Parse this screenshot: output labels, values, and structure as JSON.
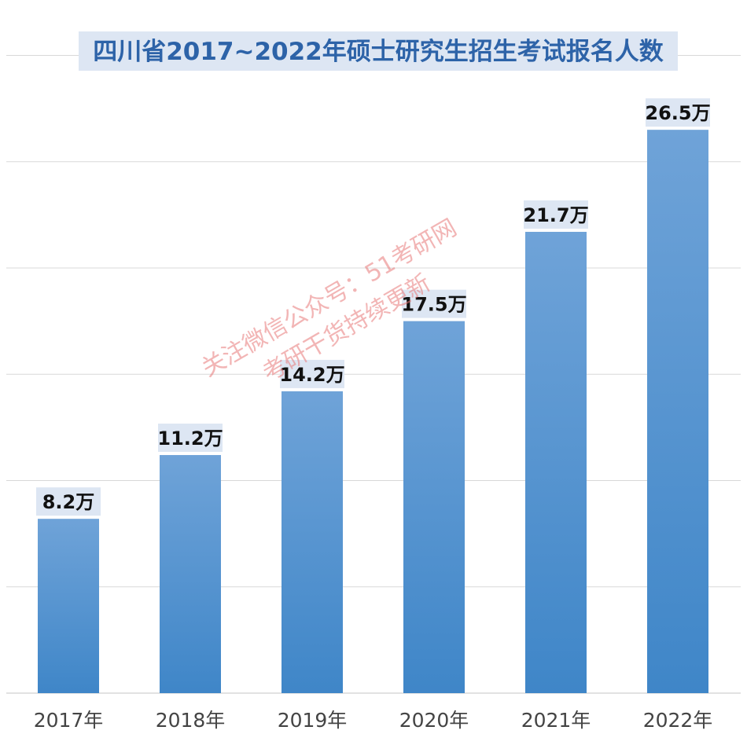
{
  "chart_data": {
    "type": "bar",
    "title": "四川省2017~2022年硕士研究生招生考试报名人数",
    "categories": [
      "2017年",
      "2018年",
      "2019年",
      "2020年",
      "2021年",
      "2022年"
    ],
    "values": [
      8.2,
      11.2,
      14.2,
      17.5,
      21.7,
      26.5
    ],
    "data_labels": [
      "8.2万",
      "11.2万",
      "14.2万",
      "17.5万",
      "21.7万",
      "26.5万"
    ],
    "unit": "万",
    "xlabel": "",
    "ylabel": "",
    "ylim": [
      0,
      30
    ],
    "grid": true,
    "legend": "none",
    "colors": {
      "bar_top": "#6fa3d8",
      "bar_bottom": "#3f86c8",
      "label_bg": "#dde6f3",
      "title_bg": "#dde6f3",
      "title_text": "#2d63a8",
      "gridline": "#d8d8d8"
    }
  },
  "watermark": {
    "line1": "关注微信公众号：51考研网",
    "line2": "考研干货持续更新"
  }
}
